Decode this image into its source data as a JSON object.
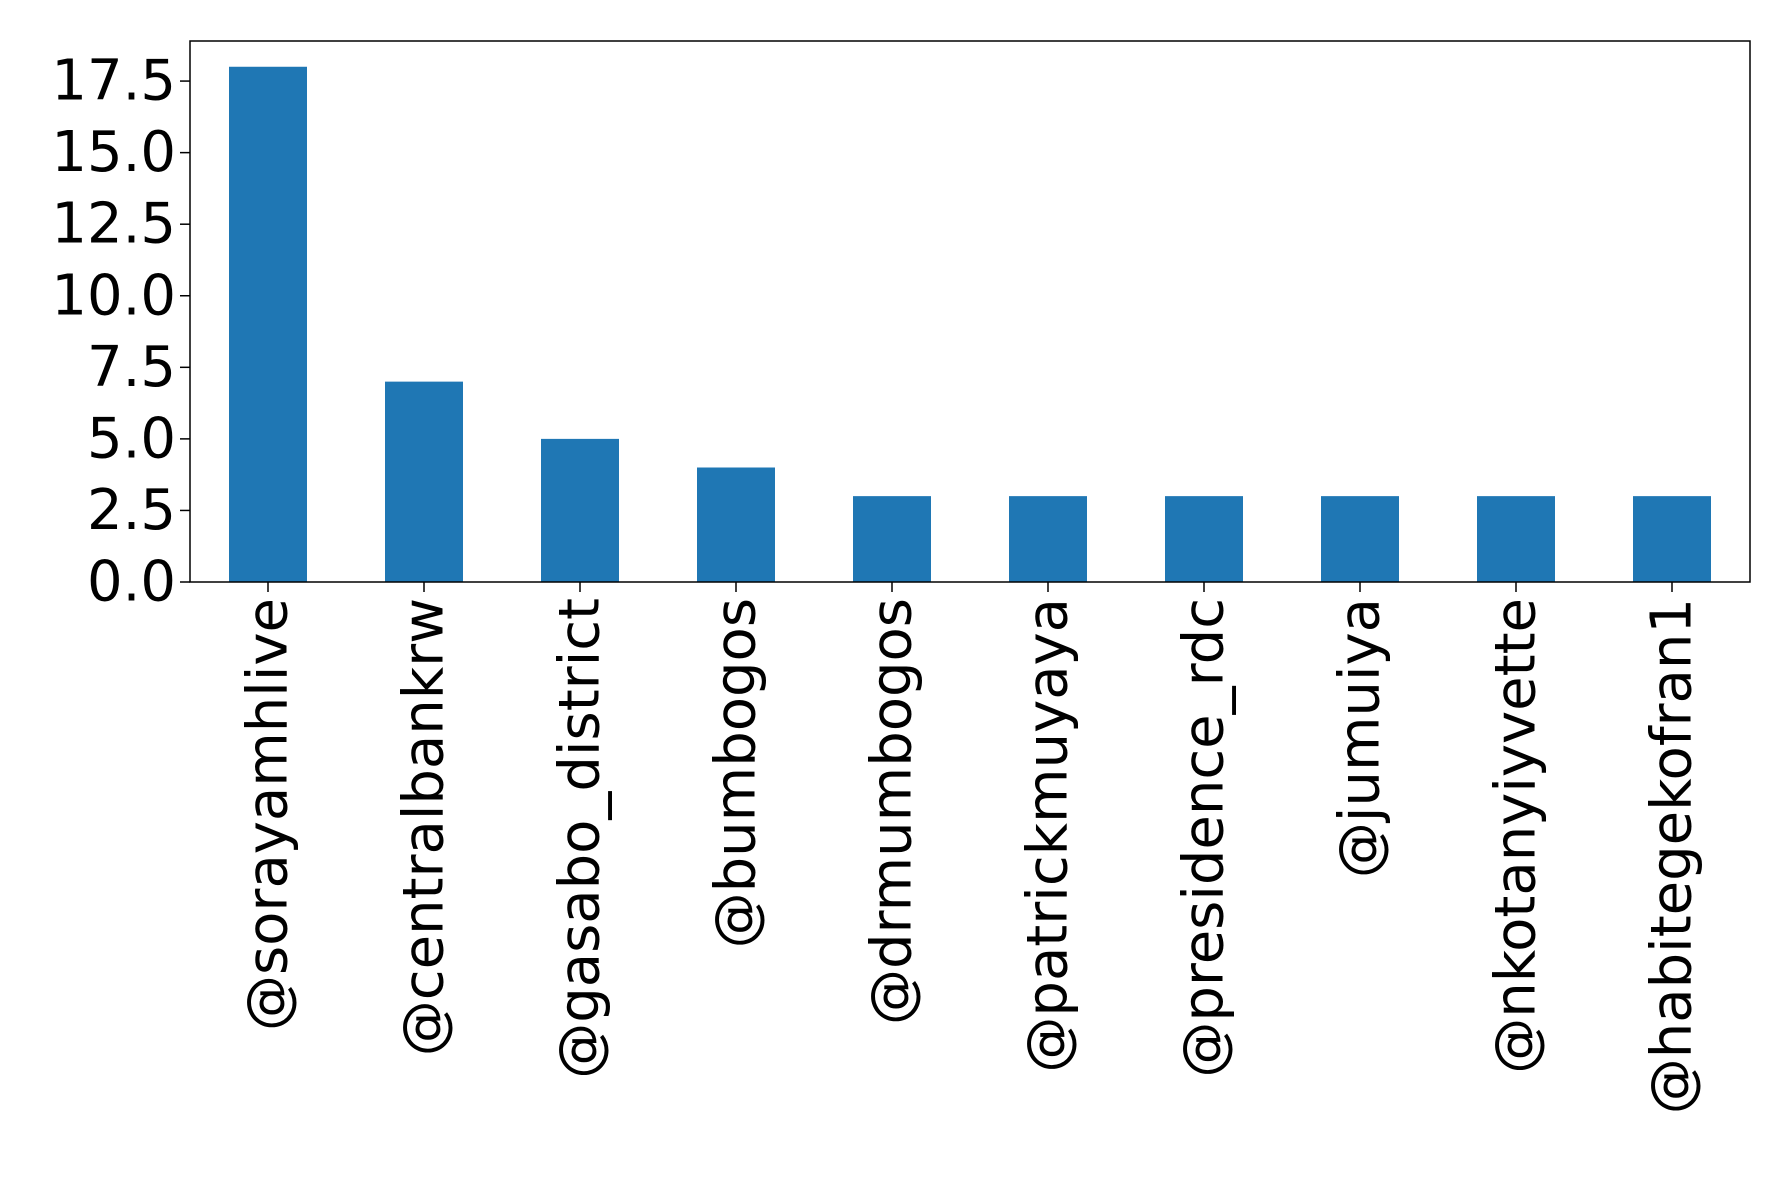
{
  "chart_data": {
    "type": "bar",
    "title": "",
    "xlabel": "",
    "ylabel": "",
    "categories": [
      "@sorayamhlive",
      "@centralbankrw",
      "@gasabo_district",
      "@bumbogos",
      "@drmumbogos",
      "@patrickmuyaya",
      "@presidence_rdc",
      "@jumuiya",
      "@nkotanyiyvette",
      "@habitegekofran1"
    ],
    "values": [
      18,
      7,
      5,
      4,
      3,
      3,
      3,
      3,
      3,
      3
    ],
    "ylim": [
      0,
      18.9
    ],
    "yticks": [
      0.0,
      2.5,
      5.0,
      7.5,
      10.0,
      12.5,
      15.0,
      17.5
    ],
    "ytick_labels": [
      "0.0",
      "2.5",
      "5.0",
      "7.5",
      "10.0",
      "12.5",
      "15.0",
      "17.5"
    ],
    "bar_color": "#1f77b4",
    "grid": false,
    "legend": "none"
  }
}
